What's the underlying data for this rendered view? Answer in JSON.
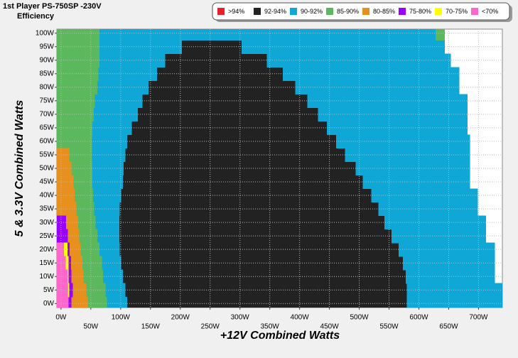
{
  "chart_data": {
    "type": "efficiency_map",
    "title": "1st Player PS-750SP -230V",
    "subtitle": "Efficiency",
    "x_label": "+12V Combined Watts",
    "y_label": "5 & 3.3V Combined Watts",
    "xlim": [
      -7,
      740
    ],
    "ylim": [
      -1.5,
      101.5
    ],
    "xticks": [
      {
        "value": 0,
        "label": "0W"
      },
      {
        "value": 50,
        "label": "50W"
      },
      {
        "value": 100,
        "label": "100W"
      },
      {
        "value": 150,
        "label": "150W"
      },
      {
        "value": 200,
        "label": "200W"
      },
      {
        "value": 250,
        "label": "250W"
      },
      {
        "value": 300,
        "label": "300W"
      },
      {
        "value": 350,
        "label": "350W"
      },
      {
        "value": 400,
        "label": "400W"
      },
      {
        "value": 450,
        "label": "450W"
      },
      {
        "value": 500,
        "label": "500W"
      },
      {
        "value": 550,
        "label": "550W"
      },
      {
        "value": 600,
        "label": "600W"
      },
      {
        "value": 650,
        "label": "650W"
      },
      {
        "value": 700,
        "label": "700W"
      }
    ],
    "yticks": [
      {
        "value": 0,
        "label": "0W"
      },
      {
        "value": 5,
        "label": "5W"
      },
      {
        "value": 10,
        "label": "10W"
      },
      {
        "value": 15,
        "label": "15W"
      },
      {
        "value": 20,
        "label": "20W"
      },
      {
        "value": 25,
        "label": "25W"
      },
      {
        "value": 30,
        "label": "30W"
      },
      {
        "value": 35,
        "label": "35W"
      },
      {
        "value": 40,
        "label": "40W"
      },
      {
        "value": 45,
        "label": "45W"
      },
      {
        "value": 50,
        "label": "50W"
      },
      {
        "value": 55,
        "label": "55W"
      },
      {
        "value": 60,
        "label": "60W"
      },
      {
        "value": 65,
        "label": "65W"
      },
      {
        "value": 70,
        "label": "70W"
      },
      {
        "value": 75,
        "label": "75W"
      },
      {
        "value": 80,
        "label": "80W"
      },
      {
        "value": 85,
        "label": "85W"
      },
      {
        "value": 90,
        "label": "90W"
      },
      {
        "value": 95,
        "label": "95W"
      },
      {
        "value": 100,
        "label": "100W"
      }
    ],
    "grid": true,
    "series": [
      {
        "name": ">94%",
        "color": "#e8202a",
        "ranges": []
      },
      {
        "name": "92-94%",
        "color": "#222222",
        "ranges": [
          [
            0,
            110,
            580
          ],
          [
            5,
            107,
            580
          ],
          [
            10,
            103,
            578
          ],
          [
            15,
            100,
            573
          ],
          [
            20,
            98,
            566
          ],
          [
            25,
            97,
            554
          ],
          [
            30,
            97,
            542
          ],
          [
            35,
            98,
            532
          ],
          [
            40,
            100,
            520
          ],
          [
            45,
            103,
            506
          ],
          [
            50,
            104,
            494
          ],
          [
            55,
            107,
            476
          ],
          [
            60,
            110,
            461
          ],
          [
            65,
            118,
            446
          ],
          [
            70,
            128,
            431
          ],
          [
            75,
            136,
            413
          ],
          [
            80,
            146,
            393
          ],
          [
            85,
            160,
            372
          ],
          [
            90,
            174,
            345
          ],
          [
            95,
            202,
            303
          ]
        ]
      },
      {
        "name": "90-92%",
        "color": "#0fa7d6",
        "ranges": [
          [
            0,
            76,
            110
          ],
          [
            5,
            74,
            107
          ],
          [
            10,
            70,
            103
          ],
          [
            15,
            68,
            100
          ],
          [
            20,
            64,
            98
          ],
          [
            25,
            60,
            97
          ],
          [
            30,
            57,
            97
          ],
          [
            35,
            55,
            98
          ],
          [
            40,
            53,
            100
          ],
          [
            45,
            52,
            103
          ],
          [
            50,
            52,
            104
          ],
          [
            55,
            51,
            107
          ],
          [
            60,
            51,
            110
          ],
          [
            65,
            52,
            118
          ],
          [
            70,
            54,
            128
          ],
          [
            75,
            56,
            136
          ],
          [
            80,
            60,
            146
          ],
          [
            85,
            62,
            160
          ],
          [
            90,
            64,
            174
          ],
          [
            95,
            64,
            202
          ],
          [
            100,
            64,
            628
          ],
          [
            0,
            580,
            741
          ],
          [
            5,
            580,
            741
          ],
          [
            10,
            578,
            727
          ],
          [
            15,
            573,
            727
          ],
          [
            20,
            566,
            727
          ],
          [
            25,
            554,
            712
          ],
          [
            30,
            542,
            712
          ],
          [
            35,
            532,
            698
          ],
          [
            40,
            520,
            698
          ],
          [
            45,
            506,
            685
          ],
          [
            50,
            494,
            685
          ],
          [
            55,
            476,
            685
          ],
          [
            60,
            461,
            685
          ],
          [
            65,
            446,
            681
          ],
          [
            70,
            431,
            681
          ],
          [
            75,
            413,
            681
          ],
          [
            80,
            393,
            667
          ],
          [
            85,
            372,
            667
          ],
          [
            90,
            345,
            653
          ],
          [
            95,
            303,
            643
          ]
        ]
      },
      {
        "name": "85-90%",
        "color": "#5cb85c",
        "ranges": [
          [
            0,
            45,
            76
          ],
          [
            5,
            42,
            74
          ],
          [
            10,
            37,
            70
          ],
          [
            15,
            35,
            68
          ],
          [
            20,
            32,
            64
          ],
          [
            25,
            30,
            60
          ],
          [
            30,
            28,
            57
          ],
          [
            35,
            25,
            55
          ],
          [
            40,
            22,
            53
          ],
          [
            45,
            20,
            52
          ],
          [
            50,
            17,
            52
          ],
          [
            55,
            13,
            51
          ],
          [
            60,
            -7,
            51
          ],
          [
            65,
            -7,
            52
          ],
          [
            70,
            -7,
            54
          ],
          [
            75,
            -7,
            56
          ],
          [
            80,
            -7,
            60
          ],
          [
            85,
            -7,
            62
          ],
          [
            90,
            -7,
            64
          ],
          [
            95,
            -7,
            64
          ],
          [
            100,
            -7,
            64
          ],
          [
            100,
            628,
            643
          ]
        ]
      },
      {
        "name": "80-85%",
        "color": "#e8901e",
        "ranges": [
          [
            0,
            17,
            45
          ],
          [
            5,
            19,
            42
          ],
          [
            10,
            17,
            37
          ],
          [
            15,
            16,
            35
          ],
          [
            20,
            14,
            32
          ],
          [
            25,
            11,
            30
          ],
          [
            30,
            8,
            28
          ],
          [
            35,
            -7,
            25
          ],
          [
            40,
            -7,
            22
          ],
          [
            45,
            -7,
            20
          ],
          [
            50,
            -7,
            17
          ],
          [
            55,
            -7,
            13
          ]
        ]
      },
      {
        "name": "75-80%",
        "color": "#9900ff",
        "ranges": [
          [
            0,
            12,
            17
          ],
          [
            5,
            13,
            19
          ],
          [
            10,
            12,
            17
          ],
          [
            15,
            12,
            16
          ],
          [
            20,
            10,
            14
          ],
          [
            25,
            -7,
            11
          ],
          [
            30,
            -7,
            8
          ]
        ]
      },
      {
        "name": "70-75%",
        "color": "#ffff00",
        "ranges": [
          [
            5,
            11,
            13
          ],
          [
            10,
            10,
            12
          ],
          [
            15,
            7,
            12
          ],
          [
            20,
            4,
            10
          ]
        ]
      },
      {
        "name": "<70%",
        "color": "#ff66cc",
        "ranges": [
          [
            0,
            -7,
            12
          ],
          [
            5,
            -7,
            11
          ],
          [
            10,
            -7,
            10
          ],
          [
            15,
            -7,
            7
          ],
          [
            20,
            -7,
            4
          ]
        ]
      }
    ]
  }
}
